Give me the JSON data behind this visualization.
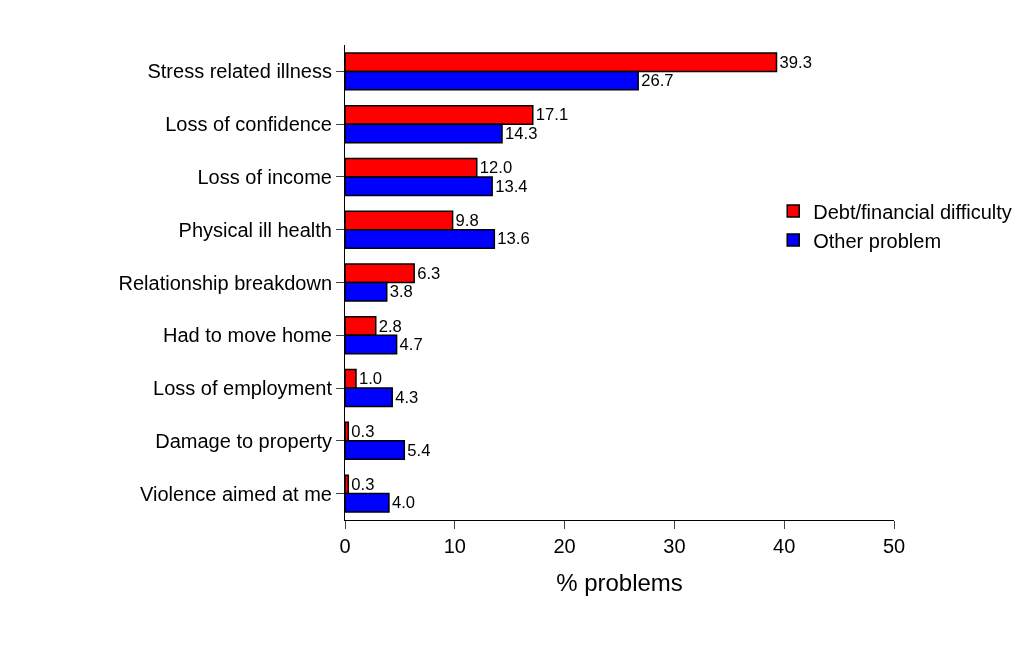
{
  "chart_data": {
    "type": "bar",
    "orientation": "horizontal",
    "xlabel": "% problems",
    "categories": [
      "Stress related illness",
      "Loss of confidence",
      "Loss of income",
      "Physical ill health",
      "Relationship breakdown",
      "Had to move home",
      "Loss of employment",
      "Damage to property",
      "Violence aimed at me"
    ],
    "series": [
      {
        "name": "Debt/financial difficulty",
        "color": "#ff0000",
        "values": [
          39.3,
          17.1,
          12.0,
          9.8,
          6.3,
          2.8,
          1.0,
          0.3,
          0.3
        ],
        "value_labels": [
          "39.3",
          "17.1",
          "12.0",
          "9.8",
          "6.3",
          "2.8",
          "1.0",
          "0.3",
          "0.3"
        ]
      },
      {
        "name": "Other problem",
        "color": "#0000ff",
        "values": [
          26.7,
          14.3,
          13.4,
          13.6,
          3.8,
          4.7,
          4.3,
          5.4,
          4.0
        ],
        "value_labels": [
          "26.7",
          "14.3",
          "13.4",
          "13.6",
          "3.8",
          "4.7",
          "4.3",
          "5.4",
          "4.0"
        ]
      }
    ],
    "xlim": [
      0,
      50
    ],
    "xticks": [
      0,
      10,
      20,
      30,
      40,
      50
    ],
    "legend": "right"
  }
}
